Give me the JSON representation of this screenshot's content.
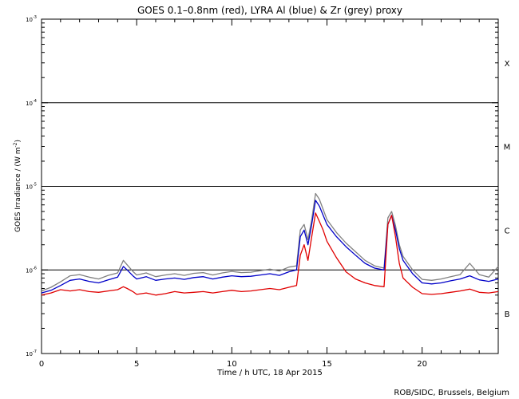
{
  "chart_data": {
    "type": "line",
    "title": "GOES 0.1–0.8nm (red), LYRA Al (blue) & Zr (grey) proxy",
    "xlabel": "Time / h UTC, 18 Apr 2015",
    "ylabel_main": "GOES Irradiance / (W m",
    "ylabel_sup": "-2",
    "ylabel_end": ")",
    "credit": "ROB/SIDC, Brussels, Belgium",
    "xlim": [
      0,
      24
    ],
    "ylim": [
      1e-07,
      0.001
    ],
    "yscale": "log",
    "x_ticks": [
      0,
      5,
      10,
      15,
      20
    ],
    "y_ticks": [
      {
        "base": "10",
        "exp": "-7"
      },
      {
        "base": "10",
        "exp": "-6"
      },
      {
        "base": "10",
        "exp": "-5"
      },
      {
        "base": "10",
        "exp": "-4"
      },
      {
        "base": "10",
        "exp": "-3"
      }
    ],
    "class_labels": [
      {
        "label": "X",
        "value": 0.0003
      },
      {
        "label": "M",
        "value": 3e-05
      },
      {
        "label": "C",
        "value": 3e-06
      },
      {
        "label": "B",
        "value": 3e-07
      }
    ],
    "threshold_lines": [
      1e-06,
      1e-05,
      0.0001
    ],
    "colors": {
      "red": "#e00000",
      "blue": "#0000c8",
      "grey": "#808080",
      "axis": "#000000"
    },
    "series": [
      {
        "color_key": "red",
        "x": [
          0,
          0.5,
          1,
          1.5,
          2,
          2.5,
          3,
          3.5,
          4,
          4.3,
          4.5,
          4.8,
          5,
          5.5,
          6,
          6.5,
          7,
          7.5,
          8,
          8.5,
          9,
          9.5,
          10,
          10.5,
          11,
          11.5,
          12,
          12.5,
          13,
          13.4,
          13.6,
          13.8,
          14,
          14.2,
          14.4,
          14.6,
          14.8,
          15,
          15.5,
          16,
          16.5,
          17,
          17.5,
          18,
          18.2,
          18.4,
          18.6,
          18.8,
          19,
          19.5,
          20,
          20.5,
          21,
          21.5,
          22,
          22.5,
          23,
          23.5,
          24
        ],
        "y": [
          5e-07,
          5.3e-07,
          5.8e-07,
          5.6e-07,
          5.8e-07,
          5.5e-07,
          5.4e-07,
          5.6e-07,
          5.8e-07,
          6.3e-07,
          6e-07,
          5.5e-07,
          5.1e-07,
          5.3e-07,
          5e-07,
          5.2e-07,
          5.5e-07,
          5.3e-07,
          5.4e-07,
          5.5e-07,
          5.3e-07,
          5.5e-07,
          5.7e-07,
          5.5e-07,
          5.6e-07,
          5.8e-07,
          6e-07,
          5.8e-07,
          6.2e-07,
          6.5e-07,
          1.5e-06,
          2e-06,
          1.3e-06,
          2.5e-06,
          4.8e-06,
          3.8e-06,
          3e-06,
          2.2e-06,
          1.4e-06,
          9.5e-07,
          7.8e-07,
          7e-07,
          6.5e-07,
          6.3e-07,
          3.5e-06,
          4.5e-06,
          2.5e-06,
          1.2e-06,
          8e-07,
          6.2e-07,
          5.2e-07,
          5.1e-07,
          5.2e-07,
          5.4e-07,
          5.6e-07,
          5.9e-07,
          5.4e-07,
          5.3e-07,
          5.5e-07
        ]
      },
      {
        "color_key": "blue",
        "x": [
          0,
          0.5,
          1,
          1.5,
          2,
          2.5,
          3,
          3.5,
          4,
          4.3,
          4.5,
          4.8,
          5,
          5.5,
          6,
          6.5,
          7,
          7.5,
          8,
          8.5,
          9,
          9.5,
          10,
          10.5,
          11,
          11.5,
          12,
          12.5,
          13,
          13.4,
          13.6,
          13.8,
          14,
          14.2,
          14.4,
          14.6,
          14.8,
          15,
          15.5,
          16,
          16.5,
          17,
          17.5,
          18,
          18.2,
          18.4,
          18.6,
          18.8,
          19,
          19.5,
          20,
          20.5,
          21,
          21.5,
          22,
          22.5,
          23,
          23.5,
          24
        ],
        "y": [
          5.3e-07,
          5.7e-07,
          6.5e-07,
          7.5e-07,
          7.8e-07,
          7.3e-07,
          7e-07,
          7.6e-07,
          8.2e-07,
          1.1e-06,
          1e-06,
          8.5e-07,
          7.8e-07,
          8.3e-07,
          7.5e-07,
          7.8e-07,
          8e-07,
          7.7e-07,
          8.1e-07,
          8.3e-07,
          7.8e-07,
          8.2e-07,
          8.5e-07,
          8.3e-07,
          8.4e-07,
          8.7e-07,
          9e-07,
          8.6e-07,
          9.5e-07,
          1e-06,
          2.5e-06,
          3e-06,
          2e-06,
          3.5e-06,
          6.8e-06,
          5.8e-06,
          4.5e-06,
          3.5e-06,
          2.5e-06,
          1.9e-06,
          1.5e-06,
          1.2e-06,
          1.05e-06,
          1e-06,
          3.5e-06,
          4.5e-06,
          3e-06,
          1.8e-06,
          1.3e-06,
          9e-07,
          7e-07,
          6.8e-07,
          7e-07,
          7.4e-07,
          7.8e-07,
          8.5e-07,
          7.6e-07,
          7.3e-07,
          7.8e-07
        ]
      },
      {
        "color_key": "grey",
        "x": [
          0,
          0.5,
          1,
          1.5,
          2,
          2.5,
          3,
          3.5,
          4,
          4.3,
          4.5,
          4.8,
          5,
          5.5,
          6,
          6.5,
          7,
          7.5,
          8,
          8.5,
          9,
          9.5,
          10,
          10.5,
          11,
          11.5,
          12,
          12.5,
          13,
          13.4,
          13.6,
          13.8,
          14,
          14.2,
          14.4,
          14.6,
          14.8,
          15,
          15.5,
          16,
          16.5,
          17,
          17.5,
          18,
          18.2,
          18.4,
          18.6,
          18.8,
          19,
          19.5,
          20,
          20.5,
          21,
          21.5,
          22,
          22.5,
          23,
          23.5,
          24
        ],
        "y": [
          5.6e-07,
          6.2e-07,
          7.2e-07,
          8.5e-07,
          8.8e-07,
          8.2e-07,
          7.8e-07,
          8.6e-07,
          9.2e-07,
          1.3e-06,
          1.15e-06,
          9.6e-07,
          8.7e-07,
          9.2e-07,
          8.3e-07,
          8.7e-07,
          9e-07,
          8.6e-07,
          9.1e-07,
          9.3e-07,
          8.7e-07,
          9.2e-07,
          9.6e-07,
          9.3e-07,
          9.4e-07,
          9.8e-07,
          1.02e-06,
          9.7e-07,
          1.08e-06,
          1.12e-06,
          3e-06,
          3.5e-06,
          2.3e-06,
          4e-06,
          8.2e-06,
          7e-06,
          5.3e-06,
          4e-06,
          2.8e-06,
          2.1e-06,
          1.65e-06,
          1.3e-06,
          1.12e-06,
          1.05e-06,
          4.2e-06,
          5e-06,
          3.4e-06,
          2e-06,
          1.45e-06,
          1e-06,
          7.7e-07,
          7.5e-07,
          7.8e-07,
          8.3e-07,
          8.8e-07,
          1.2e-06,
          8.8e-07,
          8.2e-07,
          1.1e-06
        ]
      }
    ]
  }
}
